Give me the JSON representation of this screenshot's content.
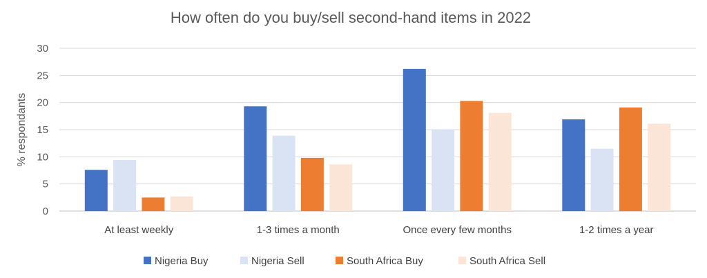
{
  "chart_data": {
    "type": "bar",
    "title": "How often do you buy/sell second-hand items in 2022",
    "xlabel": "",
    "ylabel": "% respondants",
    "ylim": [
      0,
      30
    ],
    "yticks": [
      0,
      5,
      10,
      15,
      20,
      25,
      30
    ],
    "grid": true,
    "legend_position": "bottom",
    "categories": [
      "At least weekly",
      "1-3 times a month",
      "Once every few months",
      "1-2 times a year"
    ],
    "series": [
      {
        "name": "Nigeria Buy",
        "color": "#4472c4",
        "values": [
          7.6,
          19.3,
          26.2,
          16.9
        ]
      },
      {
        "name": "Nigeria Sell",
        "color": "#dae3f3",
        "values": [
          9.4,
          13.9,
          15.0,
          11.5
        ]
      },
      {
        "name": "South Africa Buy",
        "color": "#ed7d31",
        "values": [
          2.5,
          9.8,
          20.3,
          19.1
        ]
      },
      {
        "name": "South Africa Sell",
        "color": "#fbe5d6",
        "values": [
          2.7,
          8.6,
          18.1,
          16.1
        ]
      }
    ]
  }
}
